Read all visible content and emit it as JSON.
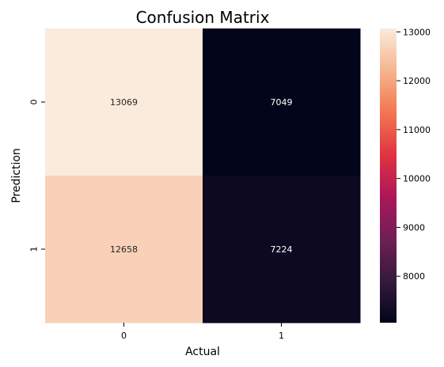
{
  "chart_data": {
    "type": "heatmap",
    "title": "Confusion Matrix",
    "xlabel": "Actual",
    "ylabel": "Prediction",
    "x_categories": [
      "0",
      "1"
    ],
    "y_categories": [
      "0",
      "1"
    ],
    "values": [
      [
        13069,
        7049
      ],
      [
        12658,
        7224
      ]
    ],
    "colorbar": {
      "min": 7049,
      "max": 13069,
      "ticks": [
        8000,
        9000,
        10000,
        11000,
        12000,
        13000
      ]
    },
    "colormap": [
      "#03051a",
      "#36193e",
      "#701f57",
      "#ad1759",
      "#e13342",
      "#f37651",
      "#f6b48f",
      "#faebdd"
    ]
  }
}
